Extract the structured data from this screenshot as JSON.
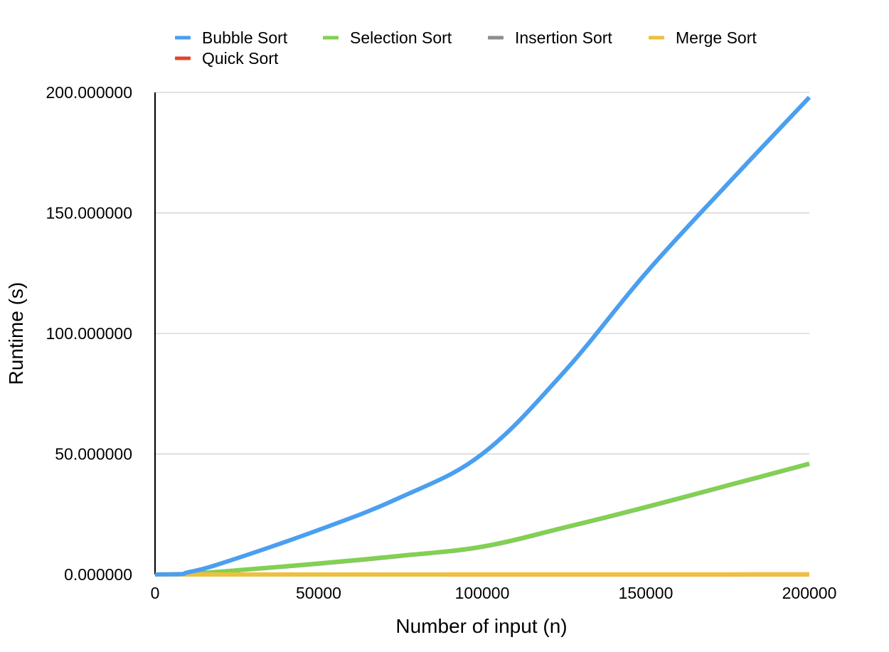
{
  "chart_data": {
    "type": "line",
    "title": "",
    "xlabel": "Number of input (n)",
    "ylabel": "Runtime (s)",
    "xlim": [
      0,
      200000
    ],
    "ylim": [
      0,
      200
    ],
    "x_ticks": [
      0,
      50000,
      100000,
      150000,
      200000
    ],
    "x_tick_labels": [
      "0",
      "50000",
      "100000",
      "150000",
      "200000"
    ],
    "y_ticks": [
      0,
      50,
      100,
      150,
      200
    ],
    "y_tick_labels": [
      "0.000000",
      "50.000000",
      "100.000000",
      "150.000000",
      "200.000000"
    ],
    "grid": "horizontal",
    "legend_position": "top",
    "series": [
      {
        "name": "Bubble Sort",
        "color": "#4a9ff0",
        "x": [
          0,
          8000,
          10000,
          20000,
          50000,
          75000,
          100000,
          125000,
          150000,
          175000,
          200000
        ],
        "y": [
          0,
          0.2,
          0.9,
          4.5,
          18.5,
          32.0,
          50.0,
          84.0,
          125.0,
          162.0,
          198.0
        ]
      },
      {
        "name": "Selection Sort",
        "color": "#82d152",
        "x": [
          0,
          8000,
          10000,
          20000,
          50000,
          75000,
          100000,
          125000,
          150000,
          175000,
          200000
        ],
        "y": [
          0,
          0.1,
          0.3,
          1.2,
          4.6,
          7.8,
          11.6,
          19.5,
          28.0,
          37.0,
          46.0
        ]
      },
      {
        "name": "Insertion Sort",
        "color": "#8e8e8e",
        "x": [
          0,
          8000,
          10000,
          20000,
          50000,
          75000,
          100000,
          125000,
          150000,
          175000,
          200000
        ],
        "y": [
          0,
          0.1,
          0.3,
          1.2,
          4.5,
          7.7,
          11.5,
          19.4,
          27.9,
          36.9,
          45.9
        ]
      },
      {
        "name": "Merge Sort",
        "color": "#f0bf3e",
        "x": [
          0,
          8000,
          10000,
          20000,
          50000,
          75000,
          100000,
          125000,
          150000,
          175000,
          200000
        ],
        "y": [
          0,
          0,
          0,
          0,
          0.01,
          0.015,
          0.02,
          0.025,
          0.03,
          0.035,
          0.04
        ]
      },
      {
        "name": "Quick Sort",
        "color": "#e0452a",
        "x": [
          0,
          8000,
          10000,
          20000,
          50000,
          75000,
          100000,
          125000,
          150000,
          175000,
          200000
        ],
        "y": [
          0,
          0,
          0,
          0,
          0.005,
          0.008,
          0.01,
          0.013,
          0.016,
          0.019,
          0.022
        ]
      }
    ]
  }
}
